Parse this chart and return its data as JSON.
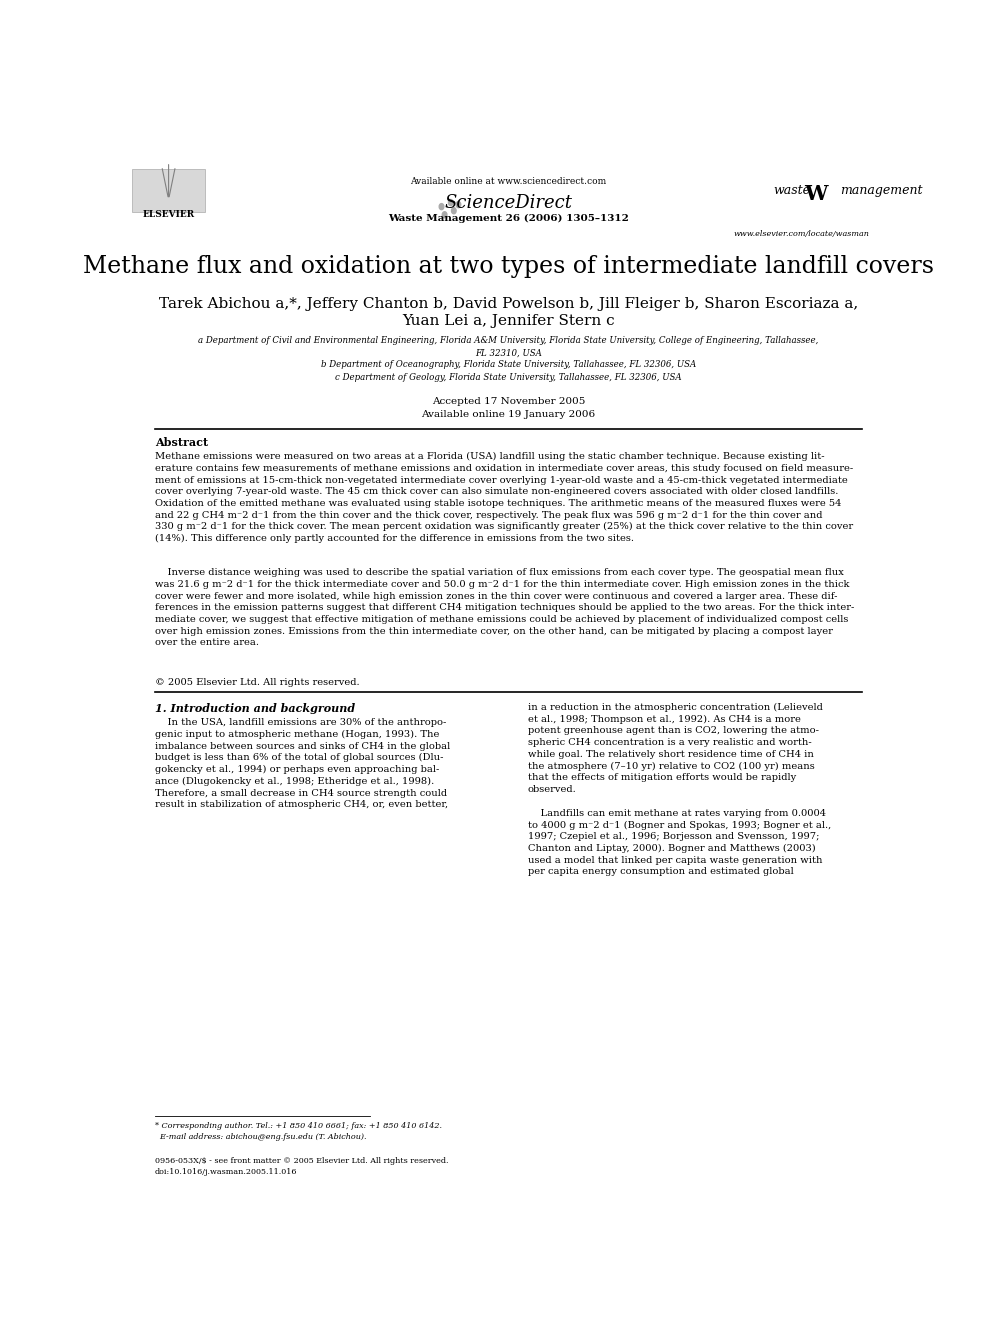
{
  "bg_color": "#ffffff",
  "page_width": 9.92,
  "page_height": 13.23,
  "header": {
    "available_online": "Available online at www.sciencedirect.com",
    "journal_info": "Waste Management 26 (2006) 1305–1312",
    "website": "www.elsevier.com/locate/wasman"
  },
  "title": "Methane flux and oxidation at two types of intermediate landfill covers",
  "authors_line1": "Tarek Abichou a,*, Jeffery Chanton b, David Powelson b, Jill Fleiger b, Sharon Escoriaza a,",
  "authors_line2": "Yuan Lei a, Jennifer Stern c",
  "affiliations": [
    "a Department of Civil and Environmental Engineering, Florida A&M University, Florida State University, College of Engineering, Tallahassee,",
    "FL 32310, USA",
    "b Department of Oceanography, Florida State University, Tallahassee, FL 32306, USA",
    "c Department of Geology, Florida State University, Tallahassee, FL 32306, USA"
  ],
  "dates": "Accepted 17 November 2005\nAvailable online 19 January 2006",
  "abstract_title": "Abstract",
  "abstract_p1": "Methane emissions were measured on two areas at a Florida (USA) landfill using the static chamber technique. Because existing lit-\nerature contains few measurements of methane emissions and oxidation in intermediate cover areas, this study focused on field measure-\nment of emissions at 15-cm-thick non-vegetated intermediate cover overlying 1-year-old waste and a 45-cm-thick vegetated intermediate\ncover overlying 7-year-old waste. The 45 cm thick cover can also simulate non-engineered covers associated with older closed landfills.\nOxidation of the emitted methane was evaluated using stable isotope techniques. The arithmetic means of the measured fluxes were 54\nand 22 g CH4 m⁻2 d⁻1 from the thin cover and the thick cover, respectively. The peak flux was 596 g m⁻2 d⁻1 for the thin cover and\n330 g m⁻2 d⁻1 for the thick cover. The mean percent oxidation was significantly greater (25%) at the thick cover relative to the thin cover\n(14%). This difference only partly accounted for the difference in emissions from the two sites.",
  "abstract_p2": "    Inverse distance weighing was used to describe the spatial variation of flux emissions from each cover type. The geospatial mean flux\nwas 21.6 g m⁻2 d⁻1 for the thick intermediate cover and 50.0 g m⁻2 d⁻1 for the thin intermediate cover. High emission zones in the thick\ncover were fewer and more isolated, while high emission zones in the thin cover were continuous and covered a larger area. These dif-\nferences in the emission patterns suggest that different CH4 mitigation techniques should be applied to the two areas. For the thick inter-\nmediate cover, we suggest that effective mitigation of methane emissions could be achieved by placement of individualized compost cells\nover high emission zones. Emissions from the thin intermediate cover, on the other hand, can be mitigated by placing a compost layer\nover the entire area.",
  "abstract_copyright": "© 2005 Elsevier Ltd. All rights reserved.",
  "section1_title": "1. Introduction and background",
  "section1_col1_p1": "    In the USA, landfill emissions are 30% of the anthropo-\ngenic input to atmospheric methane (Hogan, 1993). The\nimbalance between sources and sinks of CH4 in the global\nbudget is less than 6% of the total of global sources (Dlu-\ngokencky et al., 1994) or perhaps even approaching bal-\nance (Dlugokencky et al., 1998; Etheridge et al., 1998).\nTherefore, a small decrease in CH4 source strength could\nresult in stabilization of atmospheric CH4, or, even better,",
  "section1_col2_p1": "in a reduction in the atmospheric concentration (Lelieveld\net al., 1998; Thompson et al., 1992). As CH4 is a more\npotent greenhouse agent than is CO2, lowering the atmo-\nspheric CH4 concentration is a very realistic and worth-\nwhile goal. The relatively short residence time of CH4 in\nthe atmosphere (7–10 yr) relative to CO2 (100 yr) means\nthat the effects of mitigation efforts would be rapidly\nobserved.",
  "section1_col2_p2": "    Landfills can emit methane at rates varying from 0.0004\nto 4000 g m⁻2 d⁻1 (Bogner and Spokas, 1993; Bogner et al.,\n1997; Czepiel et al., 1996; Borjesson and Svensson, 1997;\nChanton and Liptay, 2000). Bogner and Matthews (2003)\nused a model that linked per capita waste generation with\nper capita energy consumption and estimated global",
  "footnote_star": "* Corresponding author. Tel.: +1 850 410 6661; fax: +1 850 410 6142.\n  E-mail address: abichou@eng.fsu.edu (T. Abichou).",
  "footnote_bottom": "0956-053X/$ - see front matter © 2005 Elsevier Ltd. All rights reserved.\ndoi:10.1016/j.wasman.2005.11.016"
}
